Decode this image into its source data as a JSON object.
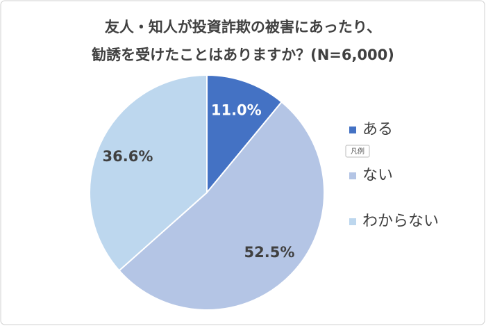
{
  "chart_data": {
    "type": "pie",
    "title": [
      "友人・知人が投資詐欺の被害にあったり、",
      "勧誘を受けたことはありますか？(N=6,000)"
    ],
    "categories": [
      "ある",
      "ない",
      "わからない"
    ],
    "values": [
      11.0,
      52.5,
      36.6
    ],
    "value_labels": [
      "11.0%",
      "52.5%",
      "36.6%"
    ],
    "colors": [
      "#4472c4",
      "#b4c5e5",
      "#bdd7ee"
    ],
    "value_label_colors": [
      "#ffffff",
      "#404040",
      "#404040"
    ],
    "legend": "right",
    "legend_tooltip": "凡例"
  }
}
